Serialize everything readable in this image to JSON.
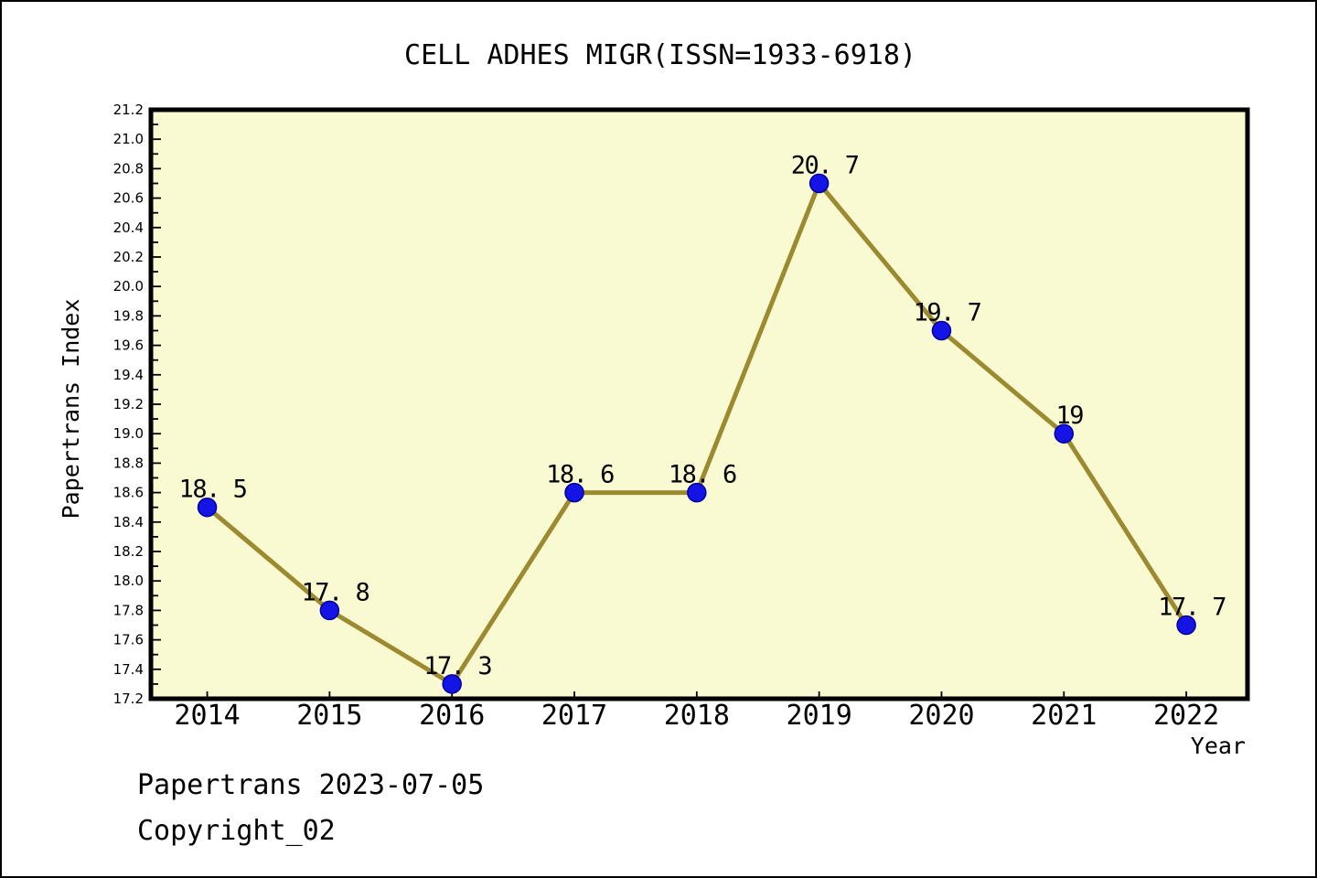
{
  "footer": {
    "line1": "Papertrans 2023-07-05",
    "line2": "Copyright_02"
  },
  "chart_data": {
    "type": "line",
    "title": "CELL ADHES MIGR(ISSN=1933-6918)",
    "xlabel": "Year",
    "ylabel": "Papertrans Index",
    "x": [
      2014,
      2015,
      2016,
      2017,
      2018,
      2019,
      2020,
      2021,
      2022
    ],
    "series": [
      {
        "name": "Papertrans Index",
        "values": [
          18.5,
          17.8,
          17.3,
          18.6,
          18.6,
          20.7,
          19.7,
          19.0,
          17.7
        ]
      }
    ],
    "point_labels": [
      "18. 5",
      "17. 8",
      "17. 3",
      "18. 6",
      "18. 6",
      "20. 7",
      "19. 7",
      "19",
      "17. 7"
    ],
    "xlim": [
      2013.54,
      2022.5
    ],
    "ylim": [
      17.2,
      21.2
    ],
    "y_major_step": 0.2,
    "y_minor_step": 0.1,
    "grid": false,
    "legend_position": "none",
    "colors": {
      "figure_bg": "#FFFFFF",
      "plot_bg": "#FAFAD2",
      "line": "#9C8A31",
      "marker": "#1414E6",
      "marker_edge": "#000099",
      "axis": "#000000",
      "text": "#000000"
    }
  }
}
